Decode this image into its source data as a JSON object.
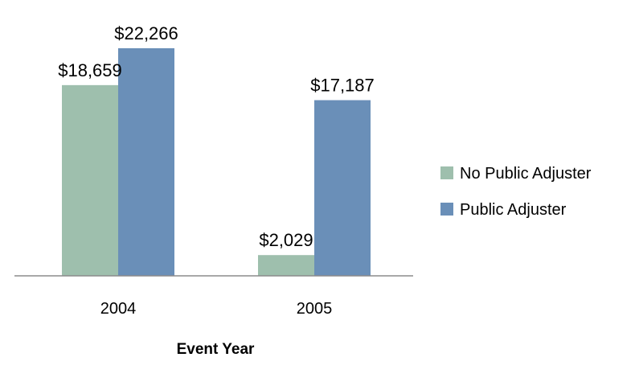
{
  "chart_data": {
    "type": "bar",
    "categories": [
      "2004",
      "2005"
    ],
    "series": [
      {
        "name": "No Public Adjuster",
        "values": [
          18659,
          2029
        ],
        "labels": [
          "$18,659",
          "$2,029"
        ],
        "color": "#9ebfad"
      },
      {
        "name": "Public Adjuster",
        "values": [
          22266,
          17187
        ],
        "labels": [
          "$22,266",
          "$17,187"
        ],
        "color": "#6a8fb8"
      }
    ],
    "title": "",
    "xlabel": "Event Year",
    "ylabel": "",
    "ylim": [
      0,
      24000
    ],
    "grid": false,
    "legend_position": "right"
  }
}
